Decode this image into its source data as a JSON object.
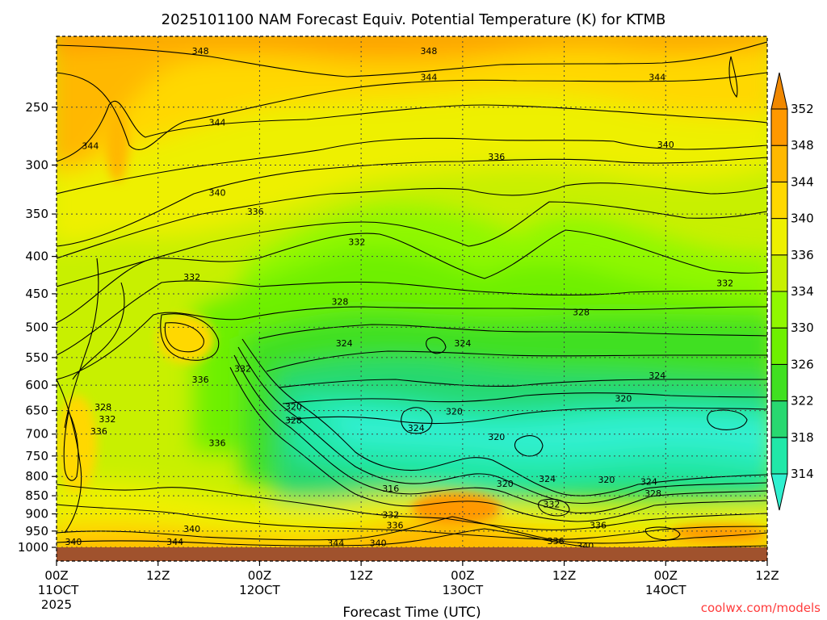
{
  "chart_data": {
    "type": "heatmap",
    "title": "2025101100 NAM Forecast Equiv. Potential Temperature (K) for KTMB",
    "xlabel": "Forecast Time (UTC)",
    "ylabel": "",
    "credit": "coolwx.com/models",
    "x_ticks": [
      {
        "label": "00Z",
        "sub1": "11OCT",
        "sub2": "2025",
        "hours": 0
      },
      {
        "label": "12Z",
        "sub1": "",
        "sub2": "",
        "hours": 12
      },
      {
        "label": "00Z",
        "sub1": "12OCT",
        "sub2": "",
        "hours": 24
      },
      {
        "label": "12Z",
        "sub1": "",
        "sub2": "",
        "hours": 36
      },
      {
        "label": "00Z",
        "sub1": "13OCT",
        "sub2": "",
        "hours": 48
      },
      {
        "label": "12Z",
        "sub1": "",
        "sub2": "",
        "hours": 60
      },
      {
        "label": "00Z",
        "sub1": "14OCT",
        "sub2": "",
        "hours": 72
      },
      {
        "label": "12Z",
        "sub1": "",
        "sub2": "",
        "hours": 84
      }
    ],
    "xlim_hours": [
      0,
      84
    ],
    "y_ticks": [
      250,
      300,
      350,
      400,
      450,
      500,
      550,
      600,
      650,
      700,
      750,
      800,
      850,
      900,
      950,
      1000
    ],
    "ylim_hpa": [
      200,
      1000
    ],
    "y_scale": "log",
    "grid": true,
    "colorbar": {
      "levels": [
        314,
        318,
        322,
        326,
        330,
        334,
        336,
        340,
        344,
        348,
        352
      ],
      "colors": [
        "#30f0d0",
        "#20e8a8",
        "#28d870",
        "#40e020",
        "#6ef000",
        "#90f800",
        "#c8f000",
        "#eef000",
        "#ffd800",
        "#ffb800",
        "#ff9800",
        "#f08800"
      ],
      "extend": "both"
    },
    "contour_labels": [
      {
        "text": "348",
        "hours": 17.0,
        "hpa": 210
      },
      {
        "text": "348",
        "hours": 44.0,
        "hpa": 210
      },
      {
        "text": "344",
        "hours": 44.0,
        "hpa": 228
      },
      {
        "text": "344",
        "hours": 71.0,
        "hpa": 228
      },
      {
        "text": "344",
        "hours": 4.0,
        "hpa": 283
      },
      {
        "text": "344",
        "hours": 19.0,
        "hpa": 263
      },
      {
        "text": "340",
        "hours": 72.0,
        "hpa": 282
      },
      {
        "text": "336",
        "hours": 52.0,
        "hpa": 293
      },
      {
        "text": "340",
        "hours": 19.0,
        "hpa": 328
      },
      {
        "text": "336",
        "hours": 23.5,
        "hpa": 348
      },
      {
        "text": "332",
        "hours": 35.5,
        "hpa": 383
      },
      {
        "text": "332",
        "hours": 16.0,
        "hpa": 428
      },
      {
        "text": "332",
        "hours": 79.0,
        "hpa": 436
      },
      {
        "text": "328",
        "hours": 33.5,
        "hpa": 462
      },
      {
        "text": "328",
        "hours": 62.0,
        "hpa": 478
      },
      {
        "text": "324",
        "hours": 34.0,
        "hpa": 527
      },
      {
        "text": "324",
        "hours": 48.0,
        "hpa": 527
      },
      {
        "text": "324",
        "hours": 71.0,
        "hpa": 583
      },
      {
        "text": "332",
        "hours": 22.0,
        "hpa": 571
      },
      {
        "text": "336",
        "hours": 17.0,
        "hpa": 591
      },
      {
        "text": "320",
        "hours": 28.0,
        "hpa": 643
      },
      {
        "text": "320",
        "hours": 47.0,
        "hpa": 653
      },
      {
        "text": "320",
        "hours": 67.0,
        "hpa": 627
      },
      {
        "text": "328",
        "hours": 28.0,
        "hpa": 672
      },
      {
        "text": "328",
        "hours": 5.5,
        "hpa": 644
      },
      {
        "text": "332",
        "hours": 6.0,
        "hpa": 669
      },
      {
        "text": "336",
        "hours": 5.0,
        "hpa": 695
      },
      {
        "text": "324",
        "hours": 42.5,
        "hpa": 688
      },
      {
        "text": "320",
        "hours": 52.0,
        "hpa": 708
      },
      {
        "text": "336",
        "hours": 19.0,
        "hpa": 721
      },
      {
        "text": "316",
        "hours": 39.5,
        "hpa": 833
      },
      {
        "text": "320",
        "hours": 53.0,
        "hpa": 820
      },
      {
        "text": "324",
        "hours": 58.0,
        "hpa": 808
      },
      {
        "text": "320",
        "hours": 65.0,
        "hpa": 810
      },
      {
        "text": "324",
        "hours": 70.0,
        "hpa": 815
      },
      {
        "text": "328",
        "hours": 70.5,
        "hpa": 845
      },
      {
        "text": "332",
        "hours": 39.5,
        "hpa": 905
      },
      {
        "text": "332",
        "hours": 58.5,
        "hpa": 875
      },
      {
        "text": "336",
        "hours": 40.0,
        "hpa": 935
      },
      {
        "text": "336",
        "hours": 64.0,
        "hpa": 935
      },
      {
        "text": "340",
        "hours": 16.0,
        "hpa": 945
      },
      {
        "text": "340",
        "hours": 2.0,
        "hpa": 985
      },
      {
        "text": "344",
        "hours": 14.0,
        "hpa": 985
      },
      {
        "text": "344",
        "hours": 33.0,
        "hpa": 988
      },
      {
        "text": "340",
        "hours": 38.0,
        "hpa": 988
      },
      {
        "text": "336",
        "hours": 59.0,
        "hpa": 982
      },
      {
        "text": "340",
        "hours": 62.5,
        "hpa": 997
      }
    ]
  }
}
